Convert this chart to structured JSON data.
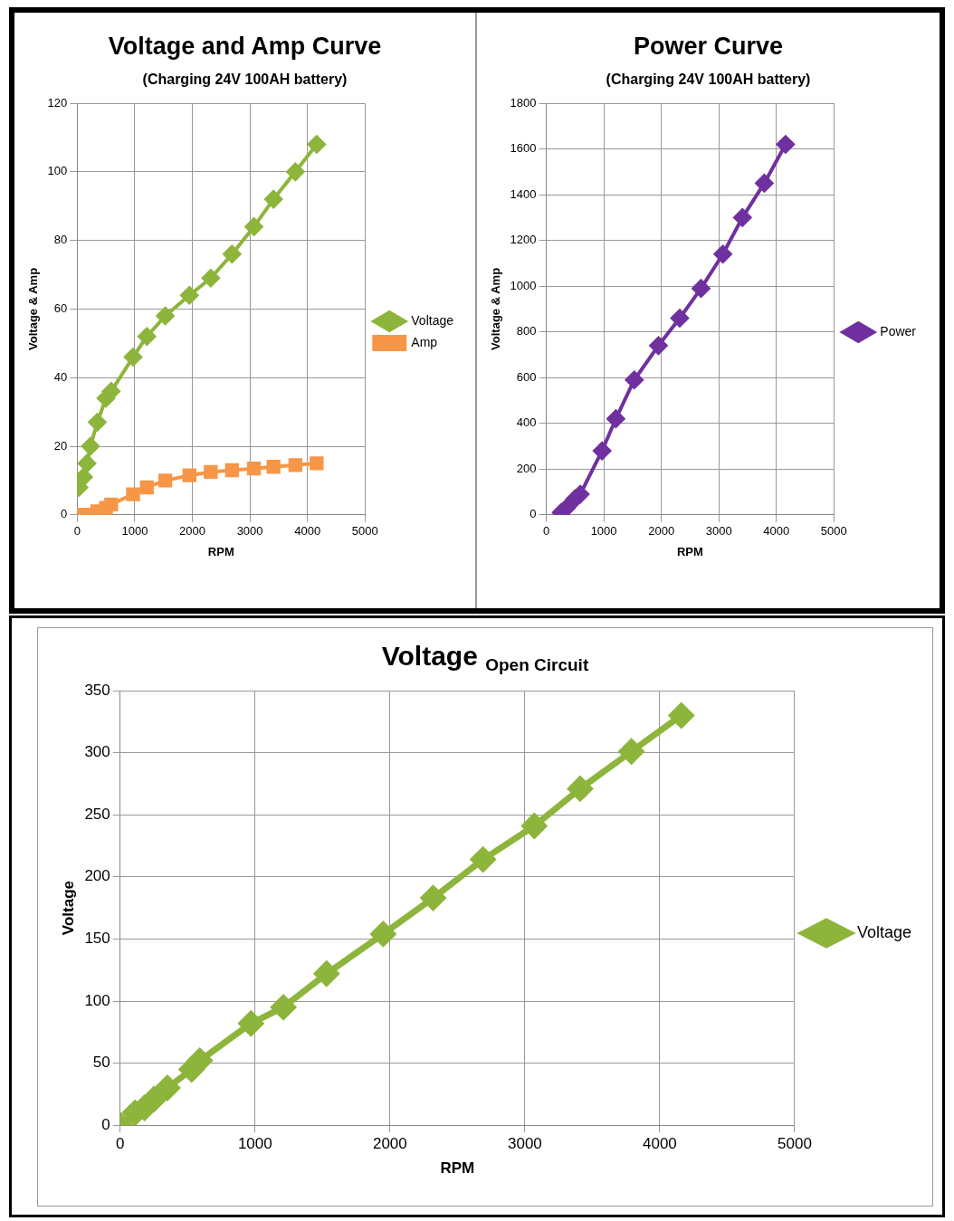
{
  "chart_data": [
    {
      "type": "line",
      "title": "Voltage and Amp Curve",
      "subtitle": "(Charging 24V 100AH battery)",
      "xlabel": "RPM",
      "ylabel": "Voltage & Amp",
      "x": [
        30,
        110,
        170,
        230,
        350,
        500,
        590,
        970,
        1210,
        1530,
        1950,
        2320,
        2690,
        3070,
        3410,
        3790,
        4160
      ],
      "series": [
        {
          "name": "Voltage",
          "color": "#8db53c",
          "marker": "diamond",
          "values": [
            8,
            11,
            15,
            20,
            27,
            34,
            36,
            46,
            52,
            58,
            64,
            69,
            76,
            84,
            92,
            100,
            108
          ]
        },
        {
          "name": "Amp",
          "color": "#f79646",
          "marker": "square",
          "values": [
            0,
            0,
            0,
            0,
            1,
            2,
            3,
            6,
            8,
            10,
            11.5,
            12.5,
            13,
            13.5,
            14,
            14.5,
            15
          ]
        }
      ],
      "xlim": [
        0,
        5000
      ],
      "xticks": [
        0,
        1000,
        2000,
        3000,
        4000,
        5000
      ],
      "ylim": [
        0,
        120
      ],
      "yticks": [
        0,
        20,
        40,
        60,
        80,
        100,
        120
      ],
      "grid": true,
      "legend": "right"
    },
    {
      "type": "line",
      "title": "Power Curve",
      "subtitle": "(Charging 24V 100AH battery)",
      "xlabel": "RPM",
      "ylabel": "Voltage & Amp",
      "x": [
        260,
        350,
        500,
        590,
        970,
        1210,
        1530,
        1950,
        2320,
        2690,
        3070,
        3410,
        3790,
        4160
      ],
      "series": [
        {
          "name": "Power",
          "color": "#7030a0",
          "marker": "diamond",
          "values": [
            10,
            30,
            70,
            90,
            280,
            420,
            590,
            740,
            860,
            990,
            1140,
            1300,
            1450,
            1620
          ]
        }
      ],
      "xlim": [
        0,
        5000
      ],
      "xticks": [
        0,
        1000,
        2000,
        3000,
        4000,
        5000
      ],
      "ylim": [
        0,
        1800
      ],
      "yticks": [
        0,
        200,
        400,
        600,
        800,
        1000,
        1200,
        1400,
        1600,
        1800
      ],
      "grid": true,
      "legend": "right"
    },
    {
      "type": "line",
      "title": "Voltage $_{Open Circuit}$",
      "xlabel": "RPM",
      "ylabel": "Voltage",
      "x": [
        0,
        110,
        180,
        250,
        350,
        530,
        590,
        970,
        1210,
        1530,
        1950,
        2320,
        2690,
        3070,
        3410,
        3790,
        4160
      ],
      "series": [
        {
          "name": "Voltage",
          "color": "#8db53c",
          "marker": "diamond",
          "values": [
            0,
            10,
            14,
            21,
            30,
            45,
            52,
            82,
            95,
            122,
            154,
            183,
            214,
            241,
            271,
            301,
            330
          ]
        }
      ],
      "xlim": [
        0,
        5000
      ],
      "xticks": [
        0,
        1000,
        2000,
        3000,
        4000,
        5000
      ],
      "ylim": [
        0,
        350
      ],
      "yticks": [
        0,
        50,
        100,
        150,
        200,
        250,
        300,
        350
      ],
      "grid": true,
      "legend": "right"
    }
  ]
}
